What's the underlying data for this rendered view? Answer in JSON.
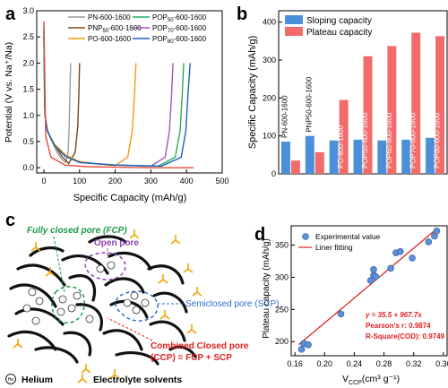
{
  "panels": {
    "a": {
      "letter": "a",
      "xlabel": "Specific Capacity (mAh/g)",
      "ylabel": "Potential (V vs. Na⁺/Na)",
      "xticks": [
        "0",
        "100",
        "200",
        "300",
        "400",
        "500"
      ],
      "yticks": [
        "0.0",
        "0.5",
        "1.0",
        "1.5",
        "2.0",
        "2.5",
        "3.0"
      ],
      "legend": [
        "PN-600-1600",
        "PNP",
        "PO-600-1600",
        "POP",
        "POP",
        "POP"
      ],
      "legend_subs": [
        "",
        "50",
        "",
        "50",
        "70",
        "80"
      ],
      "legend_rest": [
        "",
        "-600-1600",
        "",
        "-600-1600",
        "-600-1600",
        "-600-1600"
      ]
    },
    "b": {
      "letter": "b",
      "ylabel": "Specific Capacity (mAh/g)",
      "yticks": [
        "0",
        "100",
        "200",
        "300",
        "400"
      ],
      "legend": [
        "Sloping capacity",
        "Plateau capacity"
      ],
      "bar_labels": [
        "PN-600-1600",
        "PNP50-600-1600",
        "PO-600-1600",
        "POP50-600-1600",
        "POP60-600-1600",
        "POP70-600-1600",
        "POP80-600-1600"
      ]
    },
    "c": {
      "letter": "c",
      "labels": {
        "fcp": "Fully closed pore (FCP)",
        "open": "Open pore",
        "scp": "Semiclosed pore (SCP)",
        "ccp1": "Combined Closed pore",
        "ccp2": "(CCP) = FCP + SCP",
        "helium": "Helium",
        "solvent": "Electrolyte solvents",
        "he_symbol": "He"
      }
    },
    "d": {
      "letter": "d",
      "ylabel": "Plateau capacity (mAh/g)",
      "xlabel": "V",
      "xlabel_sub": "CCP",
      "xlabel_unit": "(cm³ g⁻¹)",
      "xticks": [
        "0.16",
        "0.20",
        "0.24",
        "0.28",
        "0.32",
        "0.36"
      ],
      "yticks": [
        "200",
        "250",
        "300",
        "350"
      ],
      "legend": [
        "Experimental value",
        "Liner fitting"
      ],
      "fit_text": [
        "y = 35.5 + 967.7x",
        "Pearson's r: 0.9874",
        "R-Square(COD): 0.9749"
      ]
    }
  },
  "chart_data": [
    {
      "type": "line",
      "title": "",
      "xlabel": "Specific Capacity (mAh/g)",
      "ylabel": "Potential (V vs. Na+/Na)",
      "xlim": [
        -20,
        500
      ],
      "ylim": [
        -0.1,
        3.0
      ],
      "series": [
        {
          "name": "PN-600-1600",
          "color": "#9a9a9a",
          "x": [
            0,
            2,
            5,
            10,
            20,
            35,
            50,
            62,
            68,
            71,
            73,
            75
          ],
          "y": [
            2.6,
            1.2,
            0.85,
            0.7,
            0.55,
            0.32,
            0.16,
            0.1,
            0.3,
            0.8,
            1.4,
            2.0
          ]
        },
        {
          "name": "PNP50-600-1600",
          "color": "#7a4a1a",
          "x": [
            0,
            2,
            5,
            10,
            20,
            35,
            50,
            70,
            88,
            95,
            98,
            100
          ],
          "y": [
            2.6,
            1.2,
            0.85,
            0.72,
            0.55,
            0.38,
            0.22,
            0.08,
            0.3,
            0.8,
            1.4,
            2.0
          ]
        },
        {
          "name": "PO-600-1600",
          "color": "#f39c12",
          "x": [
            0,
            3,
            10,
            30,
            60,
            100,
            150,
            200,
            235,
            248,
            254,
            258
          ],
          "y": [
            2.5,
            1.0,
            0.7,
            0.45,
            0.25,
            0.12,
            0.07,
            0.04,
            0.2,
            0.7,
            1.4,
            2.0
          ]
        },
        {
          "name": "POP50-600-1600",
          "color": "#9b59b6",
          "x": [
            0,
            3,
            10,
            30,
            60,
            100,
            200,
            300,
            340,
            352,
            358,
            362
          ],
          "y": [
            2.5,
            1.0,
            0.7,
            0.42,
            0.22,
            0.1,
            0.05,
            0.03,
            0.2,
            0.7,
            1.4,
            2.0
          ]
        },
        {
          "name": "POP70-600-1600",
          "color": "#27ae60",
          "x": [
            0,
            3,
            10,
            30,
            60,
            100,
            200,
            320,
            368,
            382,
            388,
            392
          ],
          "y": [
            2.5,
            1.0,
            0.7,
            0.42,
            0.22,
            0.1,
            0.05,
            0.03,
            0.2,
            0.7,
            1.4,
            2.0
          ]
        },
        {
          "name": "POP80-600-1600",
          "color": "#1f5fbf",
          "x": [
            0,
            3,
            10,
            30,
            60,
            100,
            200,
            330,
            385,
            398,
            404,
            410
          ],
          "y": [
            2.7,
            1.0,
            0.7,
            0.42,
            0.22,
            0.1,
            0.05,
            0.03,
            0.2,
            0.7,
            1.4,
            2.0
          ]
        },
        {
          "name": "",
          "color": "#e74c3c",
          "x": [
            0,
            5,
            20,
            60,
            120,
            200,
            300,
            400,
            420
          ],
          "y": [
            2.8,
            0.6,
            0.2,
            0.05,
            0.02,
            0.01,
            0.0,
            0.0,
            0.0
          ]
        }
      ]
    },
    {
      "type": "bar",
      "title": "",
      "ylabel": "Specific Capacity (mAh/g)",
      "ylim": [
        0,
        430
      ],
      "categories": [
        "PN-600-1600",
        "PNP50-600-1600",
        "PO-600-1600",
        "POP50-600-1600",
        "POP60-600-1600",
        "POP70-600-1600",
        "POP80-600-1600"
      ],
      "series": [
        {
          "name": "Sloping capacity",
          "color": "#4a90d9",
          "values": [
            85,
            100,
            88,
            90,
            88,
            90,
            95
          ]
        },
        {
          "name": "Plateau capacity",
          "color": "#f26b6b",
          "values": [
            35,
            57,
            195,
            310,
            337,
            372,
            363
          ]
        }
      ]
    },
    {
      "type": "scatter",
      "title": "",
      "xlabel": "VCCP(cm3 g-1)",
      "ylabel": "Plateau capacity (mAh/g)",
      "xlim": [
        0.155,
        0.365
      ],
      "ylim": [
        178,
        380
      ],
      "series": [
        {
          "name": "Experimental value",
          "color": "#5b8fd6",
          "points": [
            [
              0.169,
              188
            ],
            [
              0.172,
              197
            ],
            [
              0.178,
              195
            ],
            [
              0.222,
              243
            ],
            [
              0.262,
              295
            ],
            [
              0.266,
              312
            ],
            [
              0.266,
              303
            ],
            [
              0.269,
              301
            ],
            [
              0.289,
              314
            ],
            [
              0.296,
              338
            ],
            [
              0.302,
              340
            ],
            [
              0.318,
              330
            ],
            [
              0.34,
              355
            ],
            [
              0.348,
              364
            ],
            [
              0.351,
              372
            ]
          ]
        },
        {
          "name": "Liner fitting",
          "color": "#e02020",
          "fit": {
            "intercept": 35.5,
            "slope": 967.7,
            "xrange": [
              0.165,
              0.352
            ]
          }
        }
      ]
    }
  ]
}
